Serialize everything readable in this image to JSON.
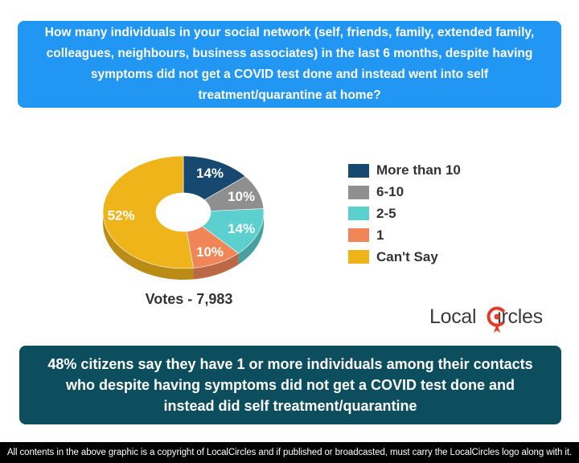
{
  "question": "How many individuals in your social network (self, friends, family, extended family, colleagues, neighbours, business associates) in the last 6 months, despite having symptoms did not get a COVID test done and instead went into self treatment/quarantine at home?",
  "chart_data": {
    "type": "pie",
    "donut": true,
    "categories": [
      "More than 10",
      "6-10",
      "2-5",
      "1",
      "Can't Say"
    ],
    "values": [
      14,
      10,
      14,
      10,
      52
    ],
    "value_labels": [
      "14%",
      "10%",
      "14%",
      "10%",
      "52%"
    ],
    "colors": [
      "#17486f",
      "#8f8f8f",
      "#5ccfcf",
      "#f08558",
      "#f0b41b"
    ],
    "legend_position": "right",
    "title": "",
    "unit": "%"
  },
  "votes_label": "Votes - 7,983",
  "logo": {
    "text_before": "Local",
    "text_after": "ircles",
    "mark": "C",
    "accent_color": "#e23b2c"
  },
  "conclusion": "48% citizens say they have 1 or more individuals among their contacts who despite having symptoms did not get a COVID test done and instead did self treatment/quarantine",
  "footer": "All contents in the above graphic is a copyright of LocalCircles and if published or broadcasted, must carry the LocalCircles logo along with it."
}
